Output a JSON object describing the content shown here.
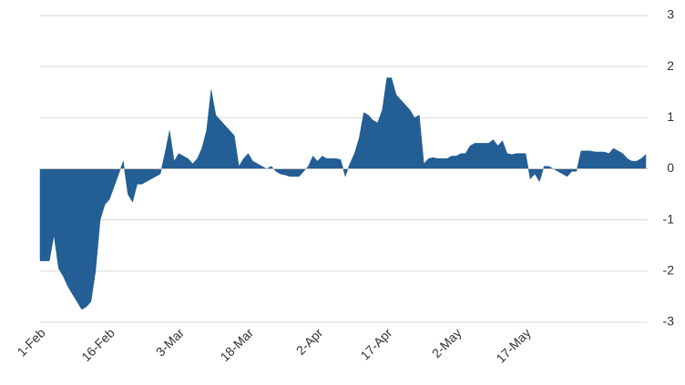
{
  "chart_data": {
    "type": "area",
    "color": "#235e94",
    "grid": true,
    "categories": [
      "1-Feb",
      null,
      null,
      null,
      null,
      null,
      null,
      null,
      null,
      null,
      null,
      null,
      null,
      null,
      null,
      "16-Feb",
      null,
      null,
      null,
      null,
      null,
      null,
      null,
      null,
      null,
      null,
      null,
      null,
      null,
      null,
      "3-Mar",
      null,
      null,
      null,
      null,
      null,
      null,
      null,
      null,
      null,
      null,
      null,
      null,
      null,
      null,
      "18-Mar",
      null,
      null,
      null,
      null,
      null,
      null,
      null,
      null,
      null,
      null,
      null,
      null,
      null,
      null,
      "2-Apr",
      null,
      null,
      null,
      null,
      null,
      null,
      null,
      null,
      null,
      null,
      null,
      null,
      null,
      null,
      "17-Apr",
      null,
      null,
      null,
      null,
      null,
      null,
      null,
      null,
      null,
      null,
      null,
      null,
      null,
      null,
      "2-May",
      null,
      null,
      null,
      null,
      null,
      null,
      null,
      null,
      null,
      null,
      null,
      null,
      null,
      null,
      "17-May",
      null,
      null,
      null,
      null,
      null,
      null,
      null,
      null,
      null,
      null,
      null,
      null,
      null,
      null,
      null,
      null,
      null,
      null,
      null,
      null,
      null,
      null,
      null,
      null,
      null,
      null
    ],
    "values": [
      -1.8,
      -1.8,
      -1.8,
      -1.3,
      -1.95,
      -2.1,
      -2.3,
      -2.45,
      -2.6,
      -2.75,
      -2.7,
      -2.6,
      -2.0,
      -1.0,
      -0.7,
      -0.6,
      -0.35,
      -0.1,
      0.15,
      -0.5,
      -0.65,
      -0.3,
      -0.3,
      -0.25,
      -0.2,
      -0.15,
      -0.1,
      0.3,
      0.75,
      0.15,
      0.3,
      0.25,
      0.2,
      0.1,
      0.2,
      0.4,
      0.75,
      1.55,
      1.05,
      0.95,
      0.85,
      0.75,
      0.65,
      0.05,
      0.2,
      0.3,
      0.15,
      0.1,
      0.05,
      0.0,
      0.05,
      -0.05,
      -0.1,
      -0.12,
      -0.15,
      -0.15,
      -0.15,
      -0.05,
      0.05,
      0.25,
      0.15,
      0.25,
      0.2,
      0.2,
      0.2,
      0.18,
      -0.15,
      0.1,
      0.3,
      0.6,
      1.1,
      1.05,
      0.95,
      0.9,
      1.15,
      1.78,
      1.78,
      1.45,
      1.35,
      1.25,
      1.15,
      1.0,
      1.05,
      0.1,
      0.2,
      0.22,
      0.2,
      0.2,
      0.2,
      0.25,
      0.25,
      0.3,
      0.3,
      0.45,
      0.5,
      0.5,
      0.5,
      0.5,
      0.57,
      0.45,
      0.55,
      0.3,
      0.28,
      0.3,
      0.3,
      0.3,
      -0.2,
      -0.1,
      -0.25,
      0.05,
      0.05,
      0.0,
      -0.05,
      -0.1,
      -0.15,
      -0.05,
      -0.05,
      0.35,
      0.35,
      0.35,
      0.33,
      0.33,
      0.33,
      0.3,
      0.4,
      0.35,
      0.3,
      0.2,
      0.15,
      0.15,
      0.2,
      0.28
    ],
    "ylim": [
      -3,
      3
    ],
    "yticks": [
      -3,
      -2,
      -1,
      0,
      1,
      2,
      3
    ]
  }
}
